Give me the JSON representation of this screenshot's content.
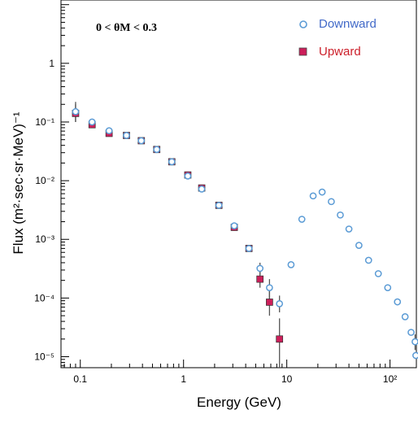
{
  "chart_data": {
    "type": "scatter",
    "xlabel": "Energy (GeV)",
    "ylabel": "Flux (m²·sec·sr·MeV)⁻¹",
    "x_scale": "log",
    "y_scale": "log",
    "xlim": [
      0.065,
      180
    ],
    "ylim": [
      6.5e-06,
      12
    ],
    "x_ticks": [
      {
        "value": 0.1,
        "label": "0.1"
      },
      {
        "value": 1,
        "label": "1"
      },
      {
        "value": 10,
        "label": "10"
      },
      {
        "value": 100,
        "label": "10²"
      }
    ],
    "y_ticks": [
      {
        "value": 1e-05,
        "label": "10⁻⁵"
      },
      {
        "value": 0.0001,
        "label": "10⁻⁴"
      },
      {
        "value": 0.001,
        "label": "10⁻³"
      },
      {
        "value": 0.01,
        "label": "10⁻²"
      },
      {
        "value": 0.1,
        "label": "10⁻¹"
      },
      {
        "value": 1,
        "label": "1"
      }
    ],
    "annotation": "0 < θM < 0.3",
    "legend_position": "top-right",
    "grid": false,
    "series": [
      {
        "name": "Downward",
        "marker": "circle",
        "color": "#5b9bd5",
        "label_color": "#4169c8",
        "points": [
          {
            "x": 0.09,
            "y": 0.15,
            "err": [
              0.1,
              0.22
            ]
          },
          {
            "x": 0.13,
            "y": 0.1
          },
          {
            "x": 0.19,
            "y": 0.071
          },
          {
            "x": 0.28,
            "y": 0.059
          },
          {
            "x": 0.39,
            "y": 0.048
          },
          {
            "x": 0.55,
            "y": 0.034
          },
          {
            "x": 0.77,
            "y": 0.021
          },
          {
            "x": 1.1,
            "y": 0.012
          },
          {
            "x": 1.5,
            "y": 0.0072
          },
          {
            "x": 2.2,
            "y": 0.0038
          },
          {
            "x": 3.1,
            "y": 0.0017
          },
          {
            "x": 4.3,
            "y": 0.0007
          },
          {
            "x": 5.5,
            "y": 0.00032,
            "err": [
              0.00025,
              0.0004
            ]
          },
          {
            "x": 6.8,
            "y": 0.00015,
            "err": [
              0.0001,
              0.00021
            ]
          },
          {
            "x": 8.5,
            "y": 8e-05,
            "err": [
              5.7e-05,
              0.00011
            ]
          },
          {
            "x": 11,
            "y": 0.00037
          },
          {
            "x": 14,
            "y": 0.0022
          },
          {
            "x": 18,
            "y": 0.0055
          },
          {
            "x": 22,
            "y": 0.0064
          },
          {
            "x": 27,
            "y": 0.0044
          },
          {
            "x": 33,
            "y": 0.0026
          },
          {
            "x": 40,
            "y": 0.0015
          },
          {
            "x": 50,
            "y": 0.00079
          },
          {
            "x": 62,
            "y": 0.00044
          },
          {
            "x": 77,
            "y": 0.00026
          },
          {
            "x": 95,
            "y": 0.00015
          },
          {
            "x": 118,
            "y": 8.6e-05
          },
          {
            "x": 140,
            "y": 4.8e-05
          },
          {
            "x": 160,
            "y": 2.6e-05
          },
          {
            "x": 175,
            "y": 1.8e-05,
            "err": [
              1.3e-05,
              2.4e-05
            ]
          },
          {
            "x": 178,
            "y": 1.05e-05
          }
        ]
      },
      {
        "name": "Upward",
        "marker": "square",
        "color": "#cc1f5a",
        "label_color": "#cc1f2a",
        "points": [
          {
            "x": 0.09,
            "y": 0.14,
            "err": [
              0.1,
              0.2
            ]
          },
          {
            "x": 0.13,
            "y": 0.09
          },
          {
            "x": 0.19,
            "y": 0.064
          },
          {
            "x": 0.28,
            "y": 0.059
          },
          {
            "x": 0.39,
            "y": 0.048
          },
          {
            "x": 0.55,
            "y": 0.034
          },
          {
            "x": 0.77,
            "y": 0.021
          },
          {
            "x": 1.1,
            "y": 0.0125
          },
          {
            "x": 1.5,
            "y": 0.0075
          },
          {
            "x": 2.2,
            "y": 0.0038
          },
          {
            "x": 3.1,
            "y": 0.0016
          },
          {
            "x": 4.3,
            "y": 0.0007
          },
          {
            "x": 5.5,
            "y": 0.00021,
            "err": [
              0.00015,
              0.00028
            ]
          },
          {
            "x": 6.8,
            "y": 8.5e-05,
            "err": [
              5e-05,
              0.00013
            ]
          },
          {
            "x": 8.5,
            "y": 2e-05,
            "err": [
              6.5e-06,
              4.5e-05
            ]
          }
        ]
      }
    ]
  }
}
